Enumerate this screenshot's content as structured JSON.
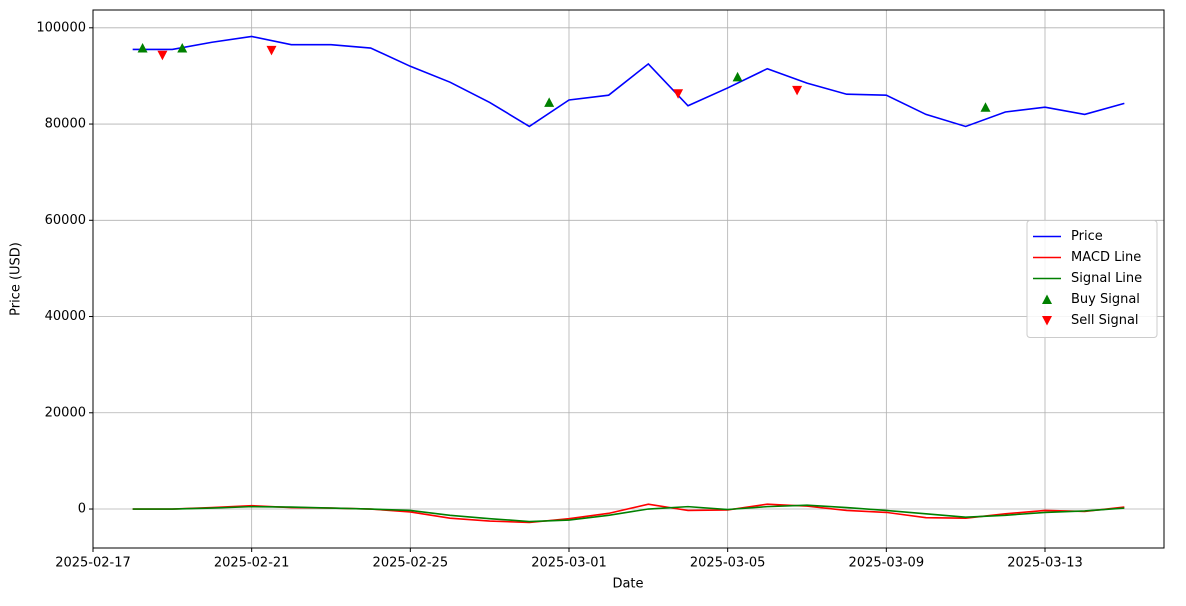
{
  "chart_data": {
    "type": "line",
    "x_label": "Date",
    "y_label": "Price (USD)",
    "x": [
      "2025-02-18",
      "2025-02-19",
      "2025-02-20",
      "2025-02-21",
      "2025-02-22",
      "2025-02-23",
      "2025-02-24",
      "2025-02-25",
      "2025-02-26",
      "2025-02-27",
      "2025-02-28",
      "2025-03-01",
      "2025-03-02",
      "2025-03-03",
      "2025-03-04",
      "2025-03-05",
      "2025-03-06",
      "2025-03-07",
      "2025-03-08",
      "2025-03-09",
      "2025-03-10",
      "2025-03-11",
      "2025-03-12",
      "2025-03-13",
      "2025-03-14",
      "2025-03-15"
    ],
    "series": [
      {
        "name": "Price",
        "color": "#0000ff",
        "values": [
          95500,
          95500,
          97000,
          98200,
          96500,
          96500,
          95800,
          92000,
          88700,
          84500,
          79500,
          85000,
          86000,
          92500,
          83800,
          87500,
          91500,
          88500,
          86200,
          86000,
          82000,
          79500,
          82500,
          83500,
          82000,
          84300
        ]
      },
      {
        "name": "MACD Line",
        "color": "#ff0000",
        "values": [
          0,
          0,
          300,
          700,
          300,
          200,
          0,
          -600,
          -1900,
          -2500,
          -2800,
          -2000,
          -900,
          1000,
          -300,
          -200,
          1000,
          600,
          -300,
          -700,
          -1800,
          -1900,
          -1000,
          -300,
          -500,
          400
        ]
      },
      {
        "name": "Signal Line",
        "color": "#008000",
        "values": [
          0,
          0,
          200,
          500,
          400,
          200,
          0,
          -300,
          -1300,
          -2000,
          -2600,
          -2300,
          -1300,
          0,
          500,
          -100,
          500,
          800,
          300,
          -300,
          -1000,
          -1700,
          -1300,
          -700,
          -400,
          200
        ]
      },
      {
        "name": "Buy Signal",
        "type": "scatter",
        "marker": "triangle-up",
        "color": "#008000",
        "x": [
          "2025-02-18 06:00",
          "2025-02-19 06:00",
          "2025-02-28 12:00",
          "2025-03-05 06:00",
          "2025-03-11 12:00"
        ],
        "values": [
          95800,
          95800,
          84500,
          89800,
          83500
        ]
      },
      {
        "name": "Sell Signal",
        "type": "scatter",
        "marker": "triangle-down",
        "color": "#ff0000",
        "x": [
          "2025-02-18 18:00",
          "2025-02-21 12:00",
          "2025-03-03 18:00",
          "2025-03-06 18:00"
        ],
        "values": [
          94300,
          95300,
          86300,
          87000
        ]
      }
    ],
    "xlim": [
      "2025-02-17",
      "2025-03-16"
    ],
    "xticks": [
      "2025-02-17",
      "2025-02-21",
      "2025-02-25",
      "2025-03-01",
      "2025-03-05",
      "2025-03-09",
      "2025-03-13"
    ],
    "ylim": [
      -8100,
      103700
    ],
    "yticks": [
      0,
      20000,
      40000,
      60000,
      80000,
      100000
    ],
    "grid": true,
    "legend": "center right"
  }
}
